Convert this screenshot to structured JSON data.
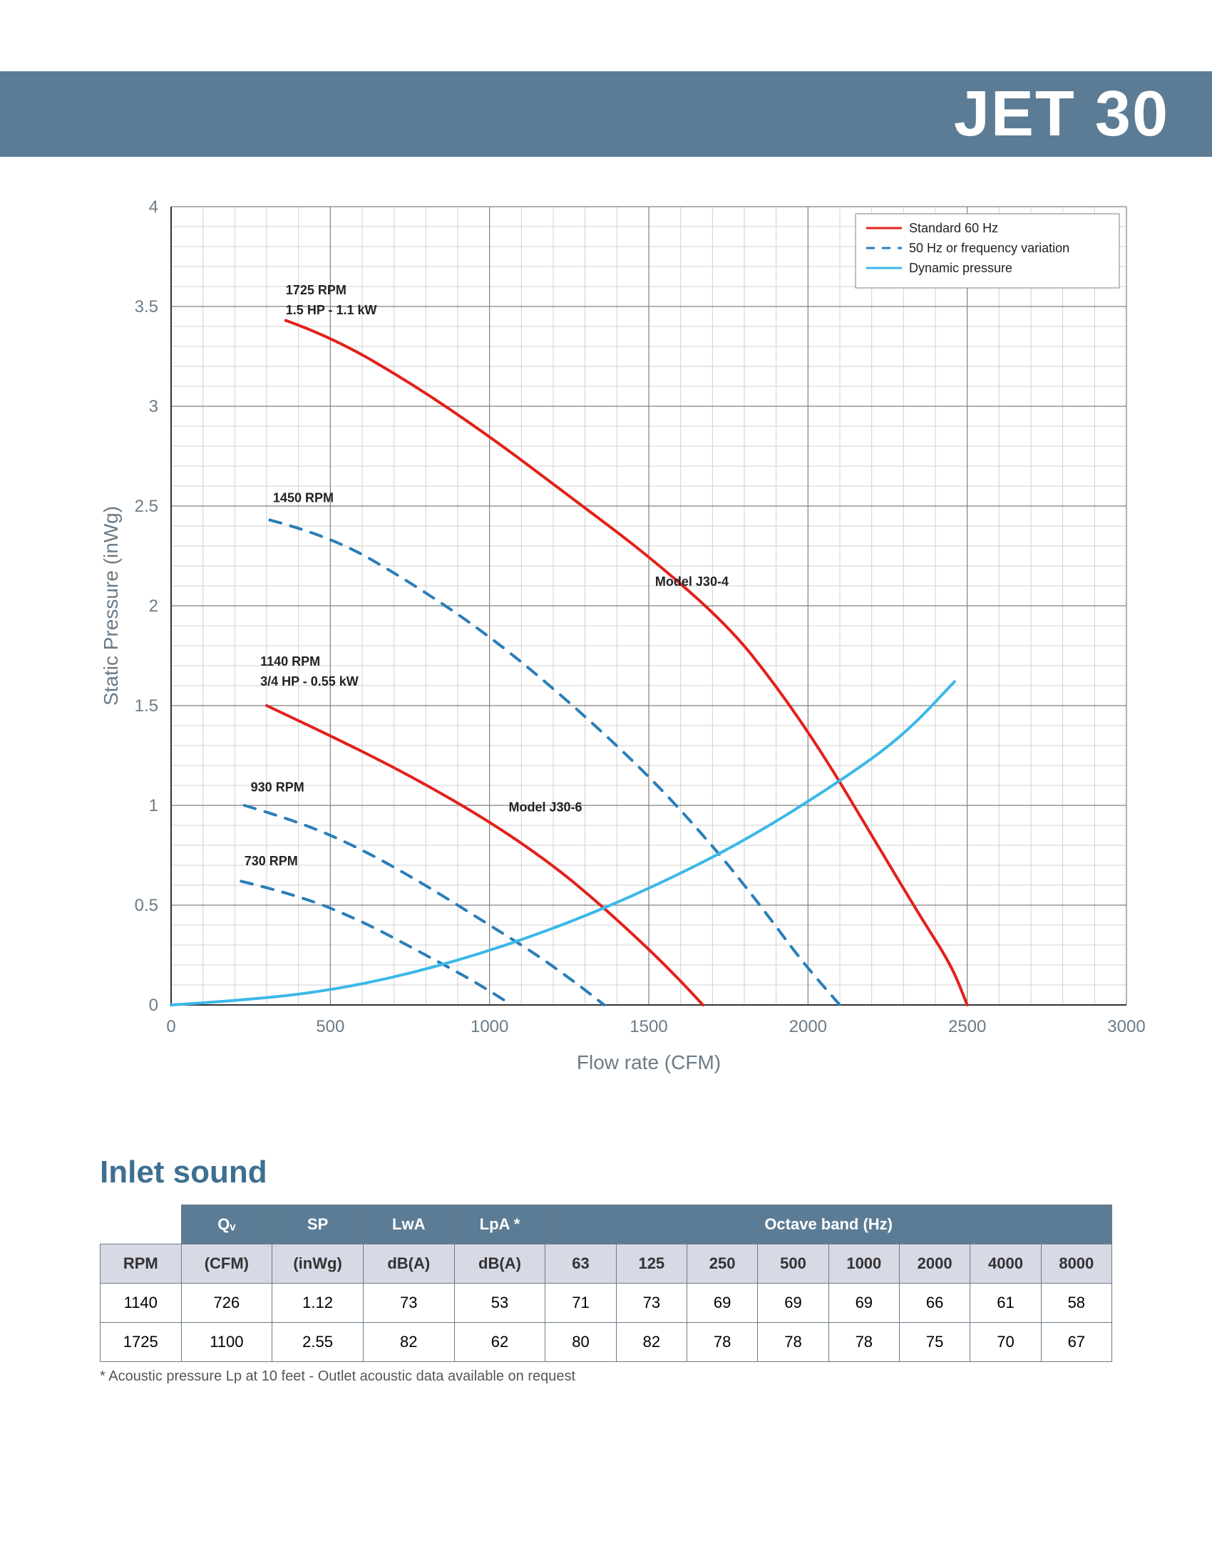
{
  "header": {
    "title": "JET 30"
  },
  "chart": {
    "type": "line",
    "title": "",
    "xlabel": "Flow rate (CFM)",
    "ylabel": "Static Pressure (inWg)",
    "xlabel_fontsize": 28,
    "ylabel_fontsize": 28,
    "axis_label_color": "#6b7b87",
    "tick_fontsize": 24,
    "tick_color": "#6b7b87",
    "xlim": [
      0,
      3000
    ],
    "ylim": [
      0,
      4
    ],
    "xtick_step": 500,
    "ytick_step": 0.5,
    "xticks": [
      0,
      500,
      1000,
      1500,
      2000,
      2500,
      3000
    ],
    "yticks": [
      0,
      0.5,
      1,
      1.5,
      2,
      2.5,
      3,
      3.5,
      4
    ],
    "minor_grid_divisions": 5,
    "background_color": "#ffffff",
    "major_grid_color": "#808080",
    "minor_grid_color": "#d0d0d0",
    "axis_color": "#333333",
    "legend": {
      "position": "top-right",
      "items": [
        {
          "label": "Standard 60 Hz",
          "color": "#e3201b",
          "dash": "solid",
          "width": 3
        },
        {
          "label": "50 Hz or frequency variation",
          "color": "#2a7eb8",
          "dash": "dashed",
          "width": 3
        },
        {
          "label": "Dynamic pressure",
          "color": "#3bb8e8",
          "dash": "solid",
          "width": 3
        }
      ],
      "fontsize": 18
    },
    "series": [
      {
        "name": "1725 RPM",
        "label_lines": [
          "1725 RPM",
          "1.5 HP - 1.1 kW"
        ],
        "model_label": "Model J30-4",
        "color": "#e3201b",
        "dash": "solid",
        "width": 4,
        "x": [
          360,
          500,
          750,
          1000,
          1250,
          1500,
          1750,
          1900,
          2050,
          2200,
          2350,
          2450,
          2500
        ],
        "y": [
          3.43,
          3.35,
          3.12,
          2.85,
          2.55,
          2.25,
          1.9,
          1.6,
          1.25,
          0.85,
          0.45,
          0.2,
          0.0
        ]
      },
      {
        "name": "1450 RPM",
        "label_lines": [
          "1450 RPM"
        ],
        "color": "#2a7eb8",
        "dash": "dashed",
        "width": 4,
        "x": [
          310,
          500,
          750,
          1000,
          1250,
          1500,
          1700,
          1850,
          1980,
          2100
        ],
        "y": [
          2.43,
          2.35,
          2.12,
          1.85,
          1.52,
          1.15,
          0.8,
          0.5,
          0.22,
          0.0
        ]
      },
      {
        "name": "1140 RPM",
        "label_lines": [
          "1140 RPM",
          "3/4 HP - 0.55 kW"
        ],
        "model_label": "Model J30-6",
        "color": "#e3201b",
        "dash": "solid",
        "width": 4,
        "x": [
          300,
          500,
          750,
          1000,
          1200,
          1350,
          1500,
          1600,
          1670
        ],
        "y": [
          1.5,
          1.35,
          1.15,
          0.92,
          0.7,
          0.5,
          0.28,
          0.12,
          0.0
        ]
      },
      {
        "name": "930 RPM",
        "label_lines": [
          "930 RPM"
        ],
        "color": "#2a7eb8",
        "dash": "dashed",
        "width": 4,
        "x": [
          230,
          400,
          600,
          800,
          1000,
          1150,
          1280,
          1360
        ],
        "y": [
          1.0,
          0.92,
          0.78,
          0.6,
          0.4,
          0.25,
          0.1,
          0.0
        ]
      },
      {
        "name": "730 RPM",
        "label_lines": [
          "730 RPM"
        ],
        "color": "#2a7eb8",
        "dash": "dashed",
        "width": 4,
        "x": [
          220,
          400,
          600,
          800,
          950,
          1070
        ],
        "y": [
          0.62,
          0.55,
          0.42,
          0.25,
          0.12,
          0.0
        ]
      },
      {
        "name": "Dynamic pressure",
        "label_lines": [],
        "color": "#3bb8e8",
        "dash": "solid",
        "width": 4,
        "x": [
          0,
          300,
          600,
          900,
          1200,
          1500,
          1800,
          2100,
          2300,
          2460
        ],
        "y": [
          0.0,
          0.03,
          0.1,
          0.22,
          0.38,
          0.58,
          0.82,
          1.12,
          1.35,
          1.62
        ]
      }
    ],
    "curve_labels": [
      {
        "text": "1725 RPM",
        "x": 360,
        "y": 3.56,
        "bold": true
      },
      {
        "text": "1.5 HP - 1.1 kW",
        "x": 360,
        "y": 3.46,
        "bold": true
      },
      {
        "text": "Model J30-4",
        "x": 1520,
        "y": 2.1,
        "bold": true
      },
      {
        "text": "1450 RPM",
        "x": 320,
        "y": 2.52,
        "bold": true
      },
      {
        "text": "1140 RPM",
        "x": 280,
        "y": 1.7,
        "bold": true
      },
      {
        "text": "3/4 HP - 0.55 kW",
        "x": 280,
        "y": 1.6,
        "bold": true
      },
      {
        "text": "Model J30-6",
        "x": 1060,
        "y": 0.97,
        "bold": true
      },
      {
        "text": "930 RPM",
        "x": 250,
        "y": 1.07,
        "bold": true
      },
      {
        "text": "730 RPM",
        "x": 230,
        "y": 0.7,
        "bold": true
      }
    ]
  },
  "inlet_sound": {
    "title": "Inlet sound",
    "footnote": "* Acoustic pressure Lp at 10 feet - Outlet acoustic data available on request",
    "header_row1": [
      "",
      "Qᵥ",
      "SP",
      "LwA",
      "LpA *",
      "Octave band (Hz)"
    ],
    "header_row2": [
      "RPM",
      "(CFM)",
      "(inWg)",
      "dB(A)",
      "dB(A)",
      "63",
      "125",
      "250",
      "500",
      "1000",
      "2000",
      "4000",
      "8000"
    ],
    "col_widths_pct": [
      8,
      9,
      9,
      9,
      9,
      7,
      7,
      7,
      7,
      7,
      7,
      7,
      7
    ],
    "header_bg": "#5b7c94",
    "header_fg": "#ffffff",
    "subheader_bg": "#d7d9e5",
    "rows": [
      [
        "1140",
        "726",
        "1.12",
        "73",
        "53",
        "71",
        "73",
        "69",
        "69",
        "69",
        "66",
        "61",
        "58"
      ],
      [
        "1725",
        "1100",
        "2.55",
        "82",
        "62",
        "80",
        "82",
        "78",
        "78",
        "78",
        "75",
        "70",
        "67"
      ]
    ]
  }
}
